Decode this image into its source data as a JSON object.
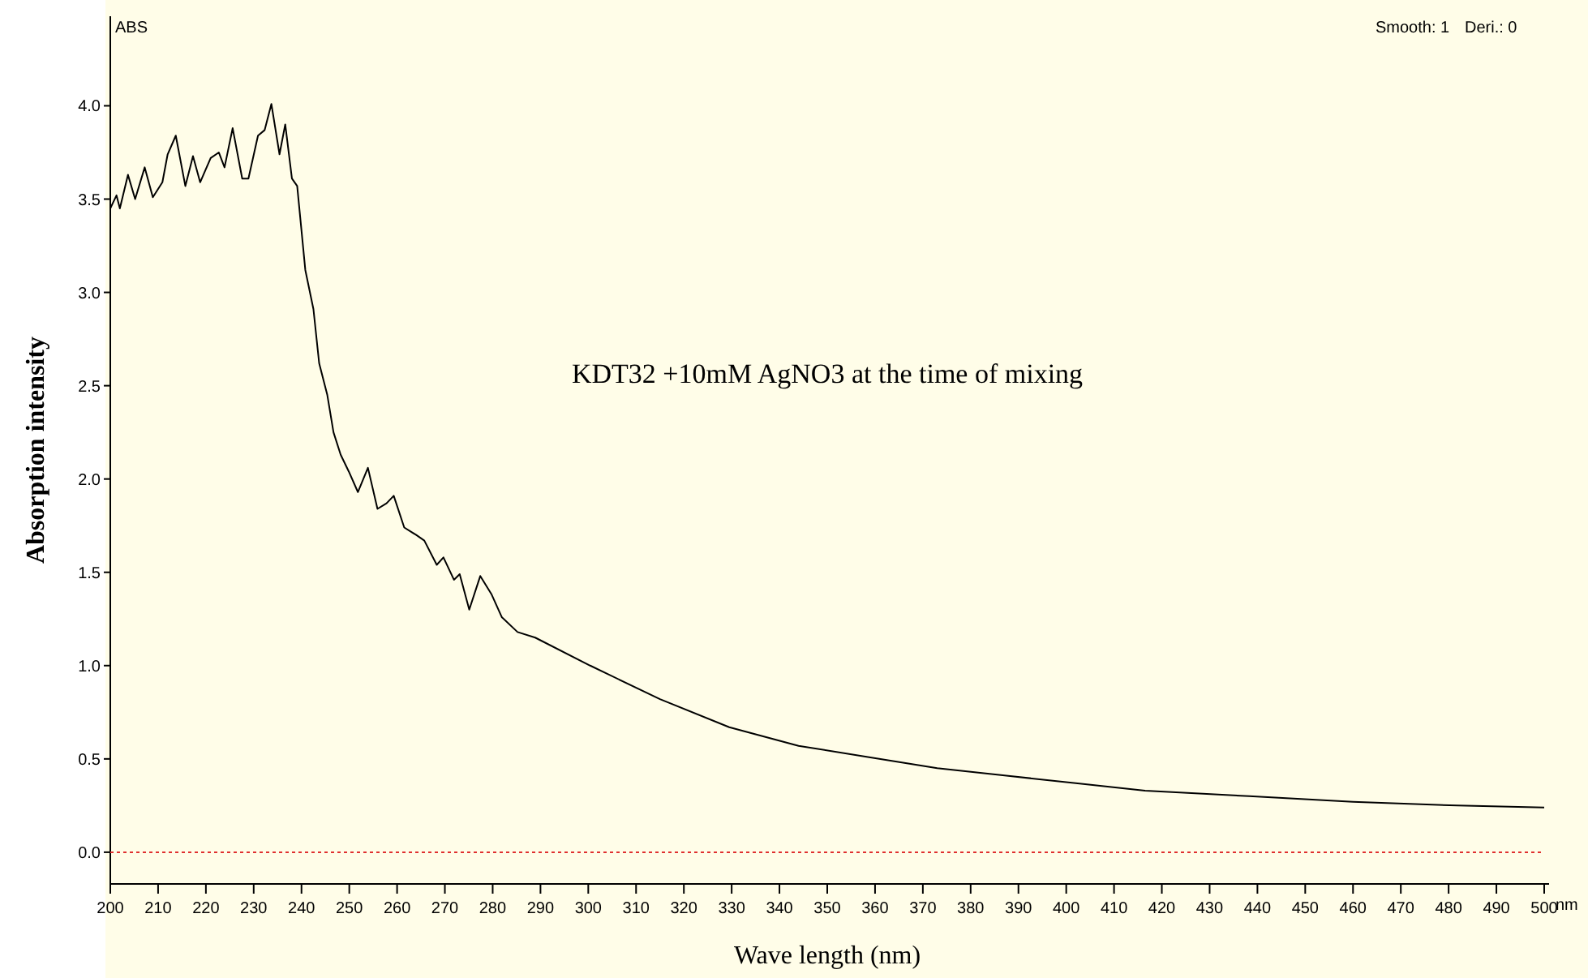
{
  "chart_data": {
    "type": "line",
    "title": "KDT32 +10mM AgNO3 at the time of mixing",
    "xlabel": "Wave length (nm)",
    "ylabel": "Absorption intensity",
    "annotations": [
      "ABS",
      "nm",
      "Smooth: 1",
      "Deri.: 0"
    ],
    "xlim": [
      200,
      500
    ],
    "ylim": [
      -0.17,
      4.48
    ],
    "xticks": [
      200,
      210,
      220,
      230,
      240,
      250,
      260,
      270,
      280,
      290,
      300,
      310,
      320,
      330,
      340,
      350,
      360,
      370,
      380,
      390,
      400,
      410,
      420,
      430,
      440,
      450,
      460,
      470,
      480,
      490,
      500
    ],
    "yticks": [
      {
        "value": 0,
        "label": "0.0"
      },
      0.5,
      {
        "value": 1,
        "label": "1.0"
      },
      1.5,
      {
        "value": 2,
        "label": "2.0"
      },
      2.5,
      {
        "value": 3,
        "label": "3.0"
      },
      3.5,
      {
        "value": 4,
        "label": "4.0"
      }
    ],
    "grid": false,
    "marker": "none",
    "line_style": "solid",
    "ref_lines": [
      {
        "axis": "y",
        "value": 0,
        "color": "#e03030",
        "line_style": "dotted"
      }
    ],
    "series": [
      {
        "color": "#000000",
        "x": [
          200,
          201.3,
          202,
          203.7,
          205.2,
          207.2,
          208.9,
          210.9,
          212,
          213.7,
          215.7,
          217.3,
          218.8,
          221,
          222.7,
          223.9,
          225.6,
          227.6,
          228.9,
          230.9,
          232.3,
          233.7,
          235.4,
          236.6,
          238,
          239.1,
          240.8,
          242.5,
          243.7,
          245.4,
          246.7,
          248.2,
          249.9,
          251.8,
          253.9,
          255.9,
          257.8,
          259.3,
          261.5,
          264,
          265.7,
          268.3,
          269.7,
          271.9,
          273.1,
          275.1,
          277.4,
          279.8,
          281.9,
          285.2,
          288.9,
          300.4,
          315,
          329.5,
          344,
          358.5,
          373,
          387.5,
          402,
          416.5,
          438.3,
          460,
          481.8,
          500
        ],
        "values": [
          3.45,
          3.52,
          3.45,
          3.63,
          3.5,
          3.67,
          3.51,
          3.59,
          3.74,
          3.84,
          3.57,
          3.73,
          3.59,
          3.72,
          3.75,
          3.67,
          3.88,
          3.61,
          3.61,
          3.84,
          3.87,
          4.01,
          3.74,
          3.9,
          3.61,
          3.57,
          3.12,
          2.91,
          2.62,
          2.45,
          2.25,
          2.13,
          2.04,
          1.93,
          2.06,
          1.84,
          1.87,
          1.91,
          1.74,
          1.7,
          1.67,
          1.54,
          1.58,
          1.46,
          1.49,
          1.3,
          1.48,
          1.38,
          1.26,
          1.18,
          1.15,
          1,
          0.82,
          0.67,
          0.57,
          0.51,
          0.45,
          0.41,
          0.37,
          0.33,
          0.3,
          0.27,
          0.25,
          0.24
        ]
      }
    ]
  }
}
